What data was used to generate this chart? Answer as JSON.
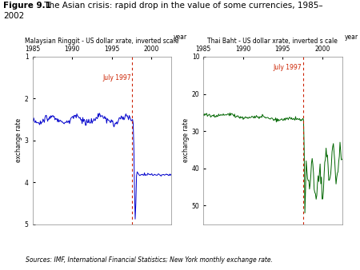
{
  "source_text": "Sources: IMF, International Financial Statistics; New York monthly exchange rate.",
  "left_chart": {
    "title": "Malaysian Ringgit - US dollar xrate, inverted scale",
    "xlabel": "year",
    "ylabel": "exchange rate",
    "ylim": [
      1,
      5
    ],
    "yticks": [
      1,
      2,
      3,
      4,
      5
    ],
    "xlim_year": [
      1985,
      2002.5
    ],
    "xticks_years": [
      1985,
      1990,
      1995,
      2000
    ],
    "color": "#0000cc",
    "crisis_year": 1997.58,
    "crisis_label": "July 1997",
    "crisis_label_color": "#cc2200"
  },
  "right_chart": {
    "title": "Thai Baht - US dollar xrate, inverted s cale",
    "xlabel": "year",
    "ylabel": "exchange rate",
    "ylim": [
      10,
      55
    ],
    "yticks": [
      10,
      20,
      30,
      40,
      50
    ],
    "xlim_year": [
      1985,
      2002.5
    ],
    "xticks_years": [
      1985,
      1990,
      1995,
      2000
    ],
    "color": "#006600",
    "crisis_year": 1997.58,
    "crisis_label": "July 1997",
    "crisis_label_color": "#cc2200"
  },
  "background_color": "#ffffff"
}
